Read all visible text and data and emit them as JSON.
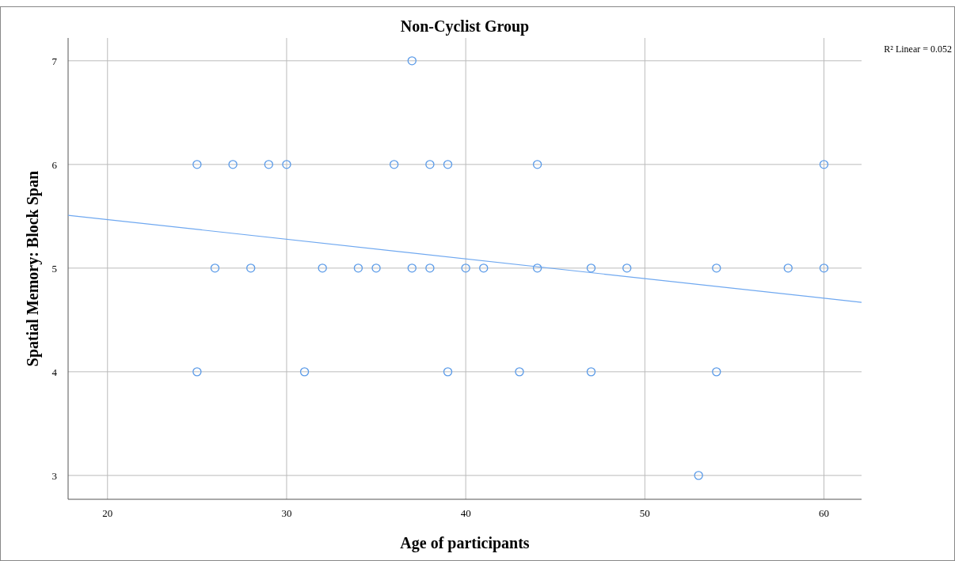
{
  "chart_data": {
    "type": "scatter",
    "title": "Non-Cyclist Group",
    "xlabel": "Age of participants",
    "ylabel": "Spatial Memory: Block Span",
    "annotations": [
      "R² Linear = 0.052"
    ],
    "xlim": [
      17.8,
      62.1
    ],
    "xticks": [
      20,
      30,
      40,
      50,
      60
    ],
    "ylim": [
      2.77,
      7.22
    ],
    "yticks": [
      3,
      4,
      5,
      6,
      7
    ],
    "grid": true,
    "marker": "circle",
    "series": [
      {
        "color": "#5b9be8",
        "x": [
          37,
          25,
          27,
          29,
          30,
          36,
          38,
          39,
          44,
          60,
          26,
          28,
          32,
          34,
          35,
          37,
          38,
          40,
          41,
          44,
          47,
          49,
          54,
          58,
          60,
          25,
          31,
          39,
          43,
          47,
          54,
          53
        ],
        "values": [
          7,
          6,
          6,
          6,
          6,
          6,
          6,
          6,
          6,
          6,
          5,
          5,
          5,
          5,
          5,
          5,
          5,
          5,
          5,
          5,
          5,
          5,
          5,
          5,
          5,
          4,
          4,
          4,
          4,
          4,
          4,
          3
        ]
      },
      {
        "type": "line",
        "color": "#6fa8f0",
        "x": [
          17.8,
          62.1
        ],
        "values": [
          5.51,
          4.67
        ],
        "marker": "none"
      }
    ]
  }
}
